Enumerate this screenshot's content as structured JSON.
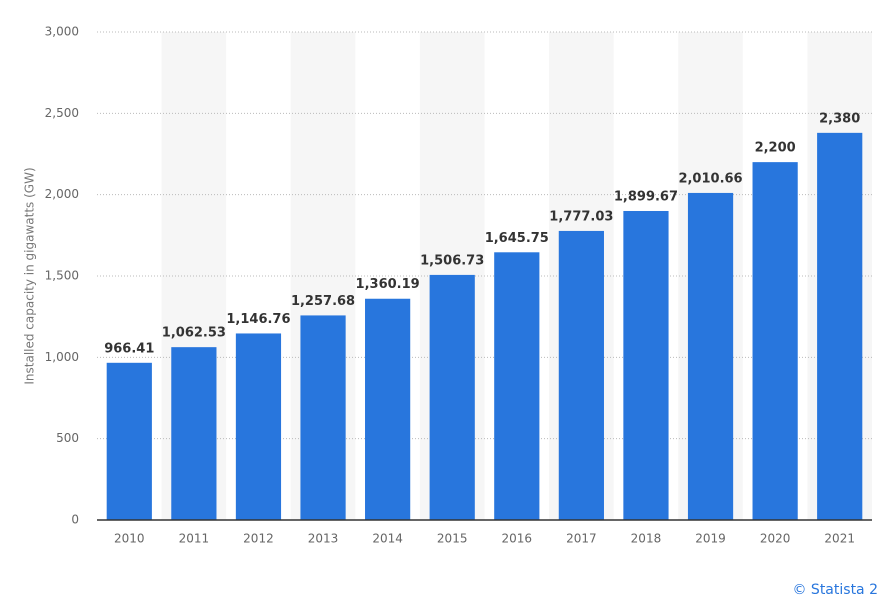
{
  "chart_data": {
    "type": "bar",
    "y_label": "Installed capacity in gigawatts (GW)",
    "categories": [
      "2010",
      "2011",
      "2012",
      "2013",
      "2014",
      "2015",
      "2016",
      "2017",
      "2018",
      "2019",
      "2020",
      "2021"
    ],
    "values": [
      966.41,
      1062.53,
      1146.76,
      1257.68,
      1360.19,
      1506.73,
      1645.75,
      1777.03,
      1899.67,
      2010.66,
      2200,
      2380
    ],
    "value_labels": [
      "966.41",
      "1,062.53",
      "1,146.76",
      "1,257.68",
      "1,360.19",
      "1,506.73",
      "1,645.75",
      "1,777.03",
      "1,899.67",
      "2,010.66",
      "2,200",
      "2,380"
    ],
    "color": "#2876dd",
    "ylim": [
      0,
      3000
    ],
    "yticks": [
      0,
      500,
      {
        "value": 1000,
        "label": "1,000"
      },
      {
        "value": 1500,
        "label": "1,500"
      },
      {
        "value": 2000,
        "label": "2,000"
      },
      {
        "value": 2500,
        "label": "2,500"
      },
      {
        "value": 3000,
        "label": "3,000"
      }
    ],
    "grid": true,
    "credit": "© Statista 2"
  }
}
